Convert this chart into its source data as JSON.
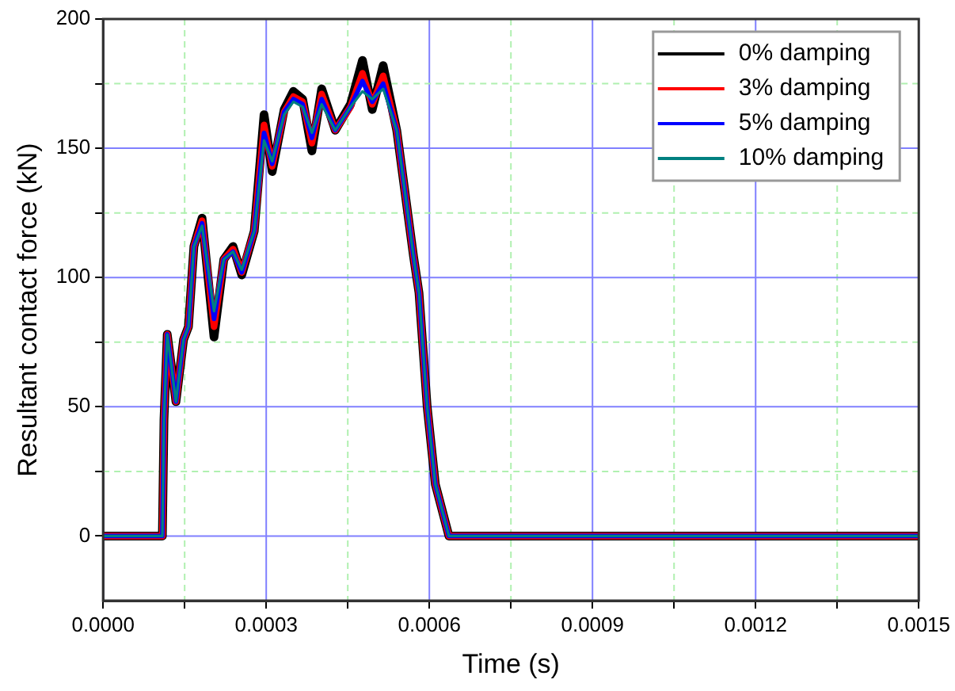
{
  "chart_data": {
    "type": "line",
    "xlabel": "Time (s)",
    "ylabel": "Resultant contact force (kN)",
    "x": [
      0,
      0.000109,
      0.000112,
      0.000118,
      0.000134,
      0.000148,
      0.000157,
      0.000167,
      0.000182,
      0.000204,
      0.000222,
      0.000239,
      0.000255,
      0.000278,
      0.000296,
      0.000311,
      0.000333,
      0.00035,
      0.000367,
      0.000384,
      0.000402,
      0.000427,
      0.000455,
      0.000477,
      0.000495,
      0.000515,
      0.00054,
      0.000571,
      0.000581,
      0.000596,
      0.000611,
      0.000636,
      0.0015
    ],
    "series": [
      {
        "name": "0% damping",
        "color": "#000000",
        "values": [
          0,
          0,
          45,
          78,
          52,
          76,
          81,
          112,
          123,
          77,
          107,
          112,
          101,
          118,
          163,
          141,
          165,
          172,
          169,
          149,
          173,
          157,
          167,
          184,
          165,
          182,
          157,
          108,
          94,
          50,
          20,
          0,
          0
        ]
      },
      {
        "name": "3% damping",
        "color": "#ff0000",
        "values": [
          0,
          0,
          45,
          78,
          52,
          76,
          81,
          112,
          122,
          81,
          107,
          111,
          102,
          118,
          159,
          143,
          164,
          170,
          168,
          152,
          171,
          157,
          166,
          179,
          167,
          178,
          157,
          108,
          94,
          50,
          20,
          0,
          0
        ]
      },
      {
        "name": "5% damping",
        "color": "#0000ff",
        "values": [
          0,
          0,
          45,
          78,
          52,
          76,
          81,
          112,
          121,
          84,
          107,
          110,
          102,
          118,
          156,
          144,
          164,
          169,
          167,
          154,
          169,
          157,
          166,
          176,
          168,
          175,
          157,
          108,
          94,
          50,
          20,
          0,
          0
        ]
      },
      {
        "name": "10% damping",
        "color": "#008080",
        "values": [
          0,
          0,
          45,
          78,
          52,
          76,
          81,
          112,
          120,
          87,
          107,
          110,
          103,
          118,
          153,
          145,
          163,
          168,
          166,
          156,
          167,
          157,
          166,
          172,
          169,
          173,
          157,
          108,
          94,
          50,
          20,
          0,
          0
        ]
      }
    ],
    "xlim": [
      0,
      0.0015
    ],
    "xticks": [
      {
        "value": 0,
        "label": "0.0000"
      },
      {
        "value": 0.00015,
        "label": null
      },
      {
        "value": 0.0003,
        "label": "0.0003"
      },
      {
        "value": 0.00045,
        "label": null
      },
      {
        "value": 0.0006,
        "label": "0.0006"
      },
      {
        "value": 0.00075,
        "label": null
      },
      {
        "value": 0.0009,
        "label": "0.0009"
      },
      {
        "value": 0.00105,
        "label": null
      },
      {
        "value": 0.0012,
        "label": "0.0012"
      },
      {
        "value": 0.00135,
        "label": null
      },
      {
        "value": 0.0015,
        "label": "0.0015"
      }
    ],
    "ylim": [
      -25,
      200
    ],
    "yticks": [
      0,
      {
        "value": 25,
        "label": null
      },
      50,
      {
        "value": 75,
        "label": null
      },
      100,
      {
        "value": 125,
        "label": null
      },
      150,
      {
        "value": 175,
        "label": null
      },
      200
    ],
    "grid": true,
    "legend": "top right",
    "marker": "none",
    "line_style": "solid"
  }
}
